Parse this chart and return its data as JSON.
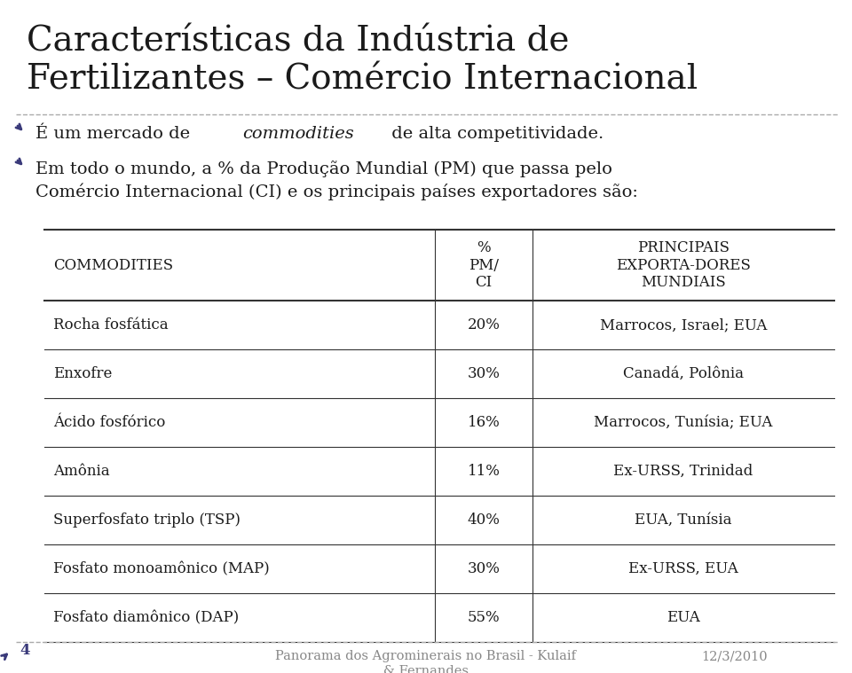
{
  "title_line1": "Características da Indústria de",
  "title_line2": "Fertilizantes – Comércio Internacional",
  "bullet1_pre": "É um mercado de ",
  "bullet1_italic": "commodities",
  "bullet1_post": " de alta competitividade.",
  "bullet2_line1": "Em todo o mundo, a % da Produção Mundial (PM) que passa pelo",
  "bullet2_line2": "Comércio Internacional (CI) e os principais países exportadores são:",
  "table_col1_header": "COMMODITIES",
  "table_col2_header": "%\nPM/\nCI",
  "table_col3_header": "PRINCIPAIS\nEXPORTA-DORES\nMUNDIAIS",
  "table_rows": [
    [
      "Rocha fosfática",
      "20%",
      "Marrocos, Israel; EUA"
    ],
    [
      "Enxofre",
      "30%",
      "Canadá, Polônia"
    ],
    [
      "Ácido fosfórico",
      "16%",
      "Marrocos, Tunísia; EUA"
    ],
    [
      "Amônia",
      "11%",
      "Ex-URSS, Trinidad"
    ],
    [
      "Superfosfato triplo (TSP)",
      "40%",
      "EUA, Tunísia"
    ],
    [
      "Fosfato monoamônico (MAP)",
      "30%",
      "Ex-URSS, EUA"
    ],
    [
      "Fosfato diamônico (DAP)",
      "55%",
      "EUA"
    ]
  ],
  "footer_num": "4",
  "footer_center_line1": "Panorama dos Agrominerais no Brasil - Kulaif",
  "footer_center_line2": "& Fernandes",
  "footer_right": "12/3/2010",
  "bg_color": "#ffffff",
  "title_color": "#1a1a1a",
  "text_color": "#1a1a1a",
  "bullet_color": "#3a3a7a",
  "table_line_color": "#333333",
  "footer_color": "#888888",
  "title_fontsize": 28,
  "bullet_fontsize": 14,
  "table_header_fontsize": 12,
  "table_row_fontsize": 12,
  "footer_fontsize": 10.5
}
